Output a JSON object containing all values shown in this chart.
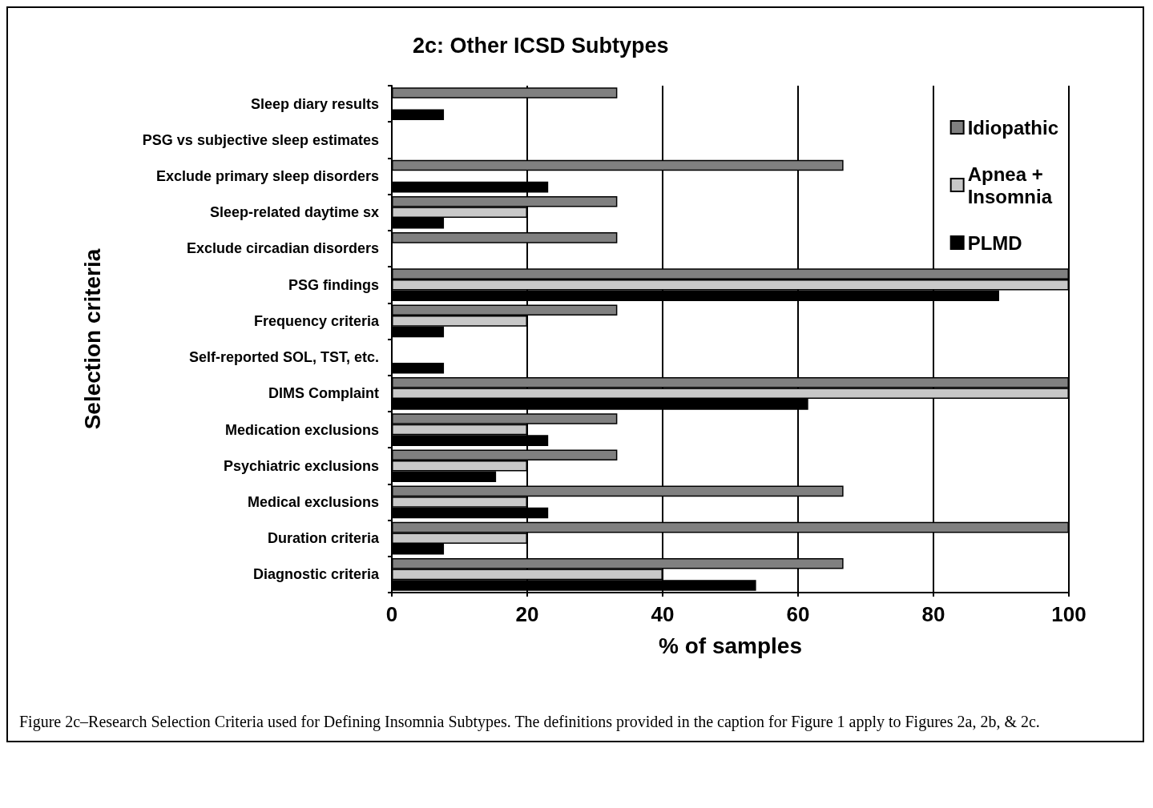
{
  "chart_data": {
    "type": "bar",
    "orientation": "horizontal",
    "title": "2c: Other ICSD Subtypes",
    "xlabel": "% of samples",
    "ylabel": "Selection criteria",
    "categories": [
      "Sleep diary results",
      "PSG vs subjective sleep estimates",
      "Exclude primary sleep disorders",
      "Sleep-related daytime sx",
      "Exclude circadian disorders",
      "PSG findings",
      "Frequency criteria",
      "Self-reported SOL, TST, etc.",
      "DIMS Complaint",
      "Medication exclusions",
      "Psychiatric exclusions",
      "Medical exclusions",
      "Duration criteria",
      "Diagnostic criteria"
    ],
    "series": [
      {
        "name": "Idiopathic",
        "color": "#808080",
        "values": [
          33.3,
          null,
          66.7,
          33.3,
          33.3,
          100,
          33.3,
          null,
          100,
          33.3,
          33.3,
          66.7,
          100,
          66.7
        ]
      },
      {
        "name": "Apnea + Insomnia",
        "color": "#c8c8c8",
        "values": [
          null,
          null,
          null,
          20,
          null,
          100,
          20,
          null,
          100,
          20,
          20,
          20,
          20,
          40
        ]
      },
      {
        "name": "PLMD",
        "color": "#000000",
        "values": [
          7.7,
          null,
          23.1,
          7.7,
          null,
          89.7,
          7.7,
          7.7,
          61.5,
          23.1,
          15.4,
          23.1,
          7.7,
          53.8
        ]
      }
    ],
    "xlim": [
      0,
      100
    ],
    "xticks": [
      0,
      20,
      40,
      60,
      80,
      100
    ],
    "grid": "x",
    "legend": "top right",
    "annotations": [
      "Figure 2c–Research Selection Criteria used for Defining Insomnia Subtypes. The definitions provided in the caption for Figure 1 apply to Figures 2a, 2b, & 2c."
    ]
  }
}
